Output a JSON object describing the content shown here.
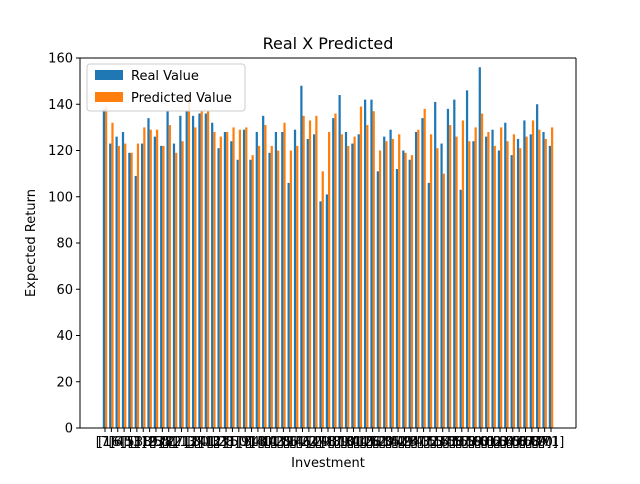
{
  "chart_data": {
    "type": "bar",
    "title": "Real X Predicted",
    "xlabel": "Investment",
    "ylabel": "Expected Return",
    "ylim": [
      0,
      160
    ],
    "yticks": [
      0,
      20,
      40,
      60,
      80,
      100,
      120,
      140,
      160
    ],
    "legend": {
      "placement": "top-left"
    },
    "grid": false,
    "category_labels_note": "Category tick labels overlap illegibly; rendered as overlapping bracketed index labels.",
    "categories": [
      "[7]",
      "[16]",
      "[6]",
      "[45]",
      "[5]",
      "[3]",
      "[38]",
      "[19]",
      "[23]",
      "[55]",
      "[8]",
      "[27]",
      "[21]",
      "[13]",
      "[2]",
      "[30]",
      "[41]",
      "[12]",
      "[33]",
      "[28]",
      "[1]",
      "[50]",
      "[9]",
      "[34]",
      "[18]",
      "[40]",
      "[11]",
      "[43]",
      "[25]",
      "[36]",
      "[14]",
      "[46]",
      "[22]",
      "[4]",
      "[29]",
      "[48]",
      "[17]",
      "[39]",
      "[10]",
      "[31]",
      "[44]",
      "[15]",
      "[26]",
      "[52]",
      "[20]",
      "[35]",
      "[42]",
      "[49]",
      "[24]",
      "[37]",
      "[47]",
      "[32]",
      "[53]",
      "[54]",
      "[51]",
      "[56]",
      "[57]",
      "[58]",
      "[59]",
      "[60]",
      "[61]",
      "[62]",
      "[63]",
      "[64]",
      "[65]",
      "[66]",
      "[67]",
      "[68]",
      "[69]",
      "[70]",
      "[71]"
    ],
    "series": [
      {
        "name": "Real Value",
        "color": "#1f77b4",
        "values": [
          138,
          123,
          126,
          128,
          119,
          109,
          123,
          134,
          126,
          122,
          137,
          123,
          135,
          137,
          135,
          136,
          136,
          132,
          121,
          128,
          124,
          116,
          129,
          116,
          128,
          135,
          119,
          128,
          128,
          106,
          129,
          148,
          125,
          127,
          98,
          101,
          134,
          144,
          128,
          123,
          127,
          142,
          142,
          111,
          126,
          129,
          112,
          120,
          116,
          128,
          134,
          106,
          141,
          123,
          138,
          142,
          103,
          146,
          124,
          156,
          126,
          129,
          120,
          132,
          118,
          125,
          133,
          127,
          140,
          128,
          122
        ]
      },
      {
        "name": "Predicted Value",
        "color": "#ff7f0e",
        "values": [
          139,
          132,
          122,
          123,
          119,
          123,
          130,
          129,
          129,
          122,
          131,
          119,
          124,
          143,
          130,
          137,
          137,
          128,
          126,
          128,
          130,
          129,
          130,
          118,
          122,
          131,
          122,
          120,
          132,
          120,
          122,
          135,
          133,
          135,
          111,
          128,
          136,
          127,
          122,
          126,
          139,
          131,
          137,
          120,
          124,
          125,
          127,
          119,
          118,
          129,
          138,
          127,
          121,
          110,
          131,
          126,
          133,
          124,
          130,
          136,
          128,
          122,
          130,
          124,
          127,
          121,
          126,
          133,
          129,
          125,
          130
        ]
      }
    ]
  }
}
